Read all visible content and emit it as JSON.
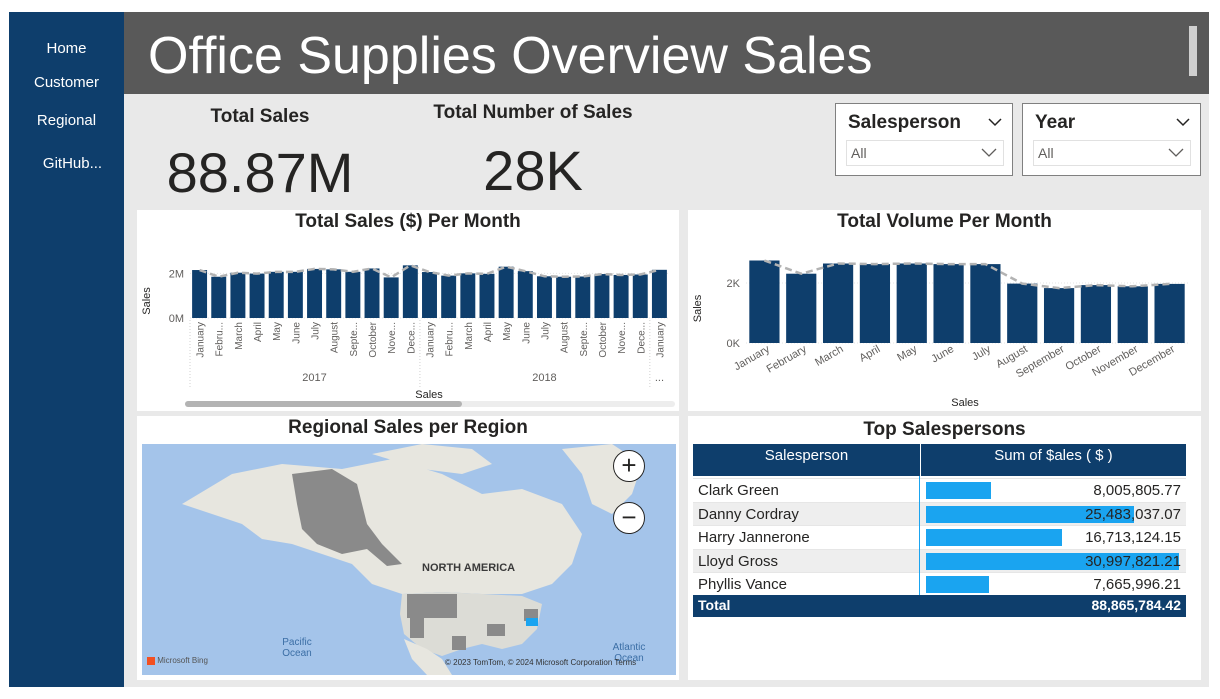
{
  "nav": {
    "items": [
      "Home",
      "Customer",
      "Regional",
      "GitHub..."
    ]
  },
  "header": {
    "title": "Office Supplies Overview Sales"
  },
  "kpis": {
    "total_sales_label": "Total Sales",
    "total_sales_value": "88.87M",
    "total_number_label": "Total Number of Sales",
    "total_number_value": "28K"
  },
  "slicers": {
    "salesperson": {
      "title": "Salesperson",
      "value": "All"
    },
    "year": {
      "title": "Year",
      "value": "All"
    }
  },
  "chart_data": [
    {
      "type": "bar",
      "title": "Total Sales ($) Per Month",
      "xlabel": "Sales",
      "ylabel": "Sales",
      "ylim": [
        0,
        2600000
      ],
      "yticks": [
        "0M",
        "2M"
      ],
      "categories": [
        "January",
        "Febru...",
        "March",
        "April",
        "May",
        "June",
        "July",
        "August",
        "Septe...",
        "October",
        "Nove...",
        "Dece...",
        "January",
        "Febru...",
        "March",
        "April",
        "May",
        "June",
        "July",
        "August",
        "Septe...",
        "October",
        "Nove...",
        "Dece...",
        "January"
      ],
      "year_labels": [
        "2017",
        "2018",
        "..."
      ],
      "values": [
        2150000,
        1850000,
        2030000,
        1990000,
        2070000,
        2070000,
        2200000,
        2180000,
        2070000,
        2220000,
        1820000,
        2360000,
        2060000,
        1900000,
        2000000,
        1980000,
        2300000,
        2100000,
        1870000,
        1850000,
        1860000,
        1970000,
        1930000,
        1950000,
        2160000
      ]
    },
    {
      "type": "bar",
      "title": "Total Volume Per Month",
      "xlabel": "Sales",
      "ylabel": "Sales",
      "ylim": [
        0,
        3100
      ],
      "yticks": [
        "0K",
        "2K"
      ],
      "categories": [
        "January",
        "February",
        "March",
        "April",
        "May",
        "June",
        "July",
        "August",
        "September",
        "October",
        "November",
        "December"
      ],
      "values": [
        2750,
        2310,
        2650,
        2630,
        2650,
        2630,
        2630,
        1980,
        1830,
        1930,
        1890,
        1970
      ]
    }
  ],
  "map_panel": {
    "title": "Regional Sales per Region",
    "continent_label": "NORTH AMERICA",
    "pacific_label": "Pacific Ocean",
    "atlantic_label": "Atlantic Ocean",
    "credit": "© 2023 TomTom, © 2024 Microsoft Corporation  Terms",
    "bing_label": "Microsoft Bing",
    "zoom_in": "+",
    "zoom_out": "−"
  },
  "top_salespersons": {
    "title": "Top Salespersons",
    "col_name": "Salesperson",
    "col_value": "Sum of $ales ( $ )",
    "max_value": 30997821.21,
    "rows": [
      {
        "name": "Clark Green",
        "value": "8,005,805.77",
        "amount": 8005805.77
      },
      {
        "name": "Danny Cordray",
        "value": "25,483,037.07",
        "amount": 25483037.07
      },
      {
        "name": "Harry Jannerone",
        "value": "16,713,124.15",
        "amount": 16713124.15
      },
      {
        "name": "Lloyd Gross",
        "value": "30,997,821.21",
        "amount": 30997821.21
      },
      {
        "name": "Phyllis Vance",
        "value": "7,665,996.21",
        "amount": 7665996.21
      }
    ],
    "total_label": "Total",
    "total_value": "88,865,784.42"
  },
  "colors": {
    "sidebar": "#0e3e6c",
    "bar": "#0e3e6c",
    "databar": "#1aa4f0",
    "header": "#595959"
  }
}
